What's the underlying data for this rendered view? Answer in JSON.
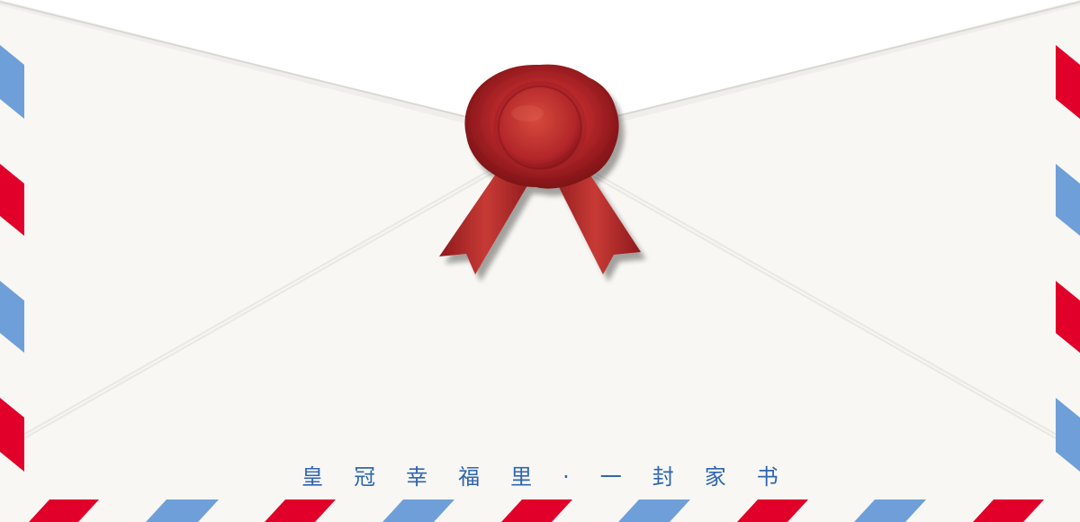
{
  "tagline": "皇冠幸福里·一封家书",
  "colors": {
    "background": "#ffffff",
    "envelope_paper": "#f8f7f3",
    "stripe_red": "#e0002a",
    "stripe_blue": "#6f9fd8",
    "wax_seal": "#b5262b",
    "text_blue": "#2f66b0"
  },
  "decorations": {
    "seal": "wax-seal-with-ribbon",
    "border": "airmail-stripes"
  }
}
